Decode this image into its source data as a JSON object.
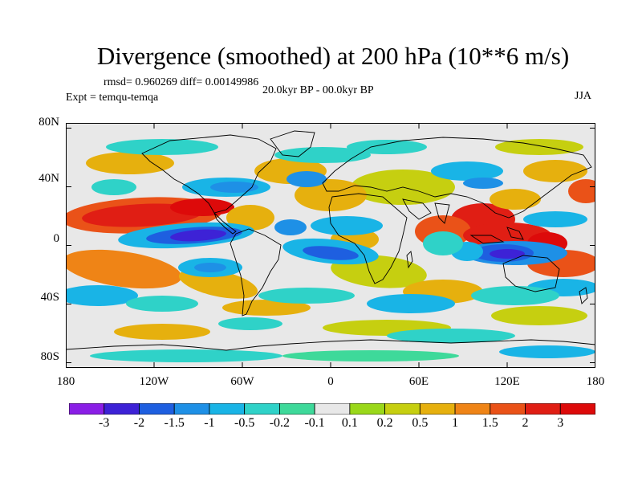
{
  "header": {
    "title": "Divergence (smoothed) at 200 hPa (10**6 m/s)",
    "stats": "rmsd= 0.960269 diff= 0.00149986",
    "experiment": "Expt = temqu-temqa",
    "period": "20.0kyr BP - 00.0kyr BP",
    "season": "JJA"
  },
  "axes": {
    "lat_labels": [
      "80N",
      "40N",
      "0",
      "40S",
      "80S"
    ],
    "lon_labels": [
      "180",
      "120W",
      "60W",
      "0",
      "60E",
      "120E",
      "180"
    ]
  },
  "colorbar": {
    "labels": [
      "-3",
      "-2",
      "-1.5",
      "-1",
      "-0.5",
      "-0.2",
      "-0.1",
      "0.1",
      "0.2",
      "0.5",
      "1",
      "1.5",
      "2",
      "3"
    ],
    "colors": [
      "#8a1ee6",
      "#3d22d6",
      "#1e5fe0",
      "#1e90e6",
      "#19b4e6",
      "#2fd2c8",
      "#3ed99a",
      "#e8e8e8",
      "#9ad81a",
      "#c6cf10",
      "#e6b00e",
      "#ef8416",
      "#ea5218",
      "#e01e14",
      "#dd0a0a"
    ]
  }
}
